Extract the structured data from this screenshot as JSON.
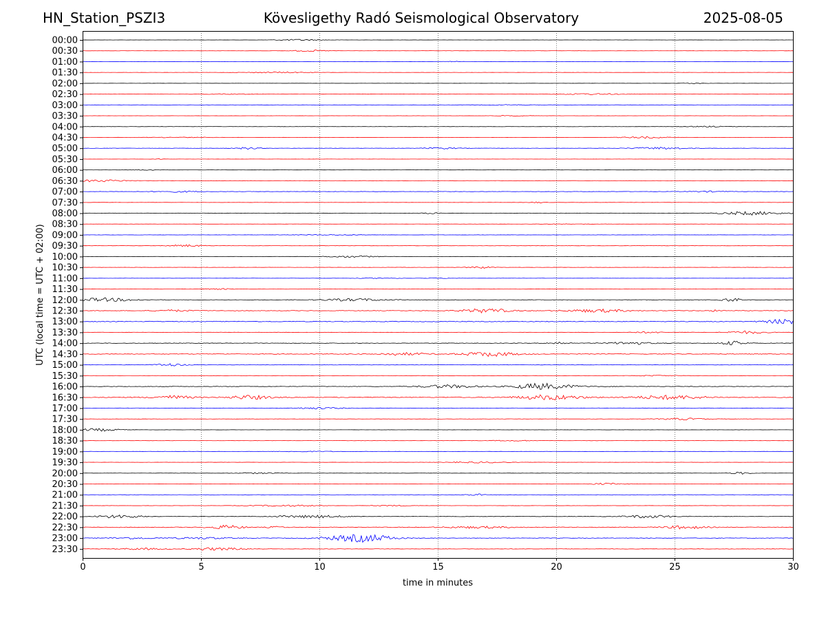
{
  "header": {
    "station": "HN_Station_PSZI3",
    "observatory": "Kövesligethy Radó Seismological Observatory",
    "date": "2025-08-05"
  },
  "chart_data": {
    "type": "line",
    "title": "Kövesligethy Radó Seismological Observatory",
    "xlabel": "time in minutes",
    "ylabel": "UTC (local time = UTC + 02:00)",
    "xlim": [
      0,
      30
    ],
    "x_ticks": [
      0,
      5,
      10,
      15,
      20,
      25,
      30
    ],
    "grid": "vertical dotted lines at each x tick",
    "trace_colors": [
      "#000000",
      "#ff0000",
      "#0000ff",
      "#ff0000"
    ],
    "rows": [
      "00:00",
      "00:30",
      "01:00",
      "01:30",
      "02:00",
      "02:30",
      "03:00",
      "03:30",
      "04:00",
      "04:30",
      "05:00",
      "05:30",
      "06:00",
      "06:30",
      "07:00",
      "07:30",
      "08:00",
      "08:30",
      "09:00",
      "09:30",
      "10:00",
      "10:30",
      "11:00",
      "11:30",
      "12:00",
      "12:30",
      "13:00",
      "13:30",
      "14:00",
      "14:30",
      "15:00",
      "15:30",
      "16:00",
      "16:30",
      "17:00",
      "17:30",
      "18:00",
      "18:30",
      "19:00",
      "19:30",
      "20:00",
      "20:30",
      "21:00",
      "21:30",
      "22:00",
      "22:30",
      "23:00",
      "23:30"
    ],
    "activity": [
      0.3,
      0.4,
      0.4,
      0.3,
      0.3,
      0.4,
      0.4,
      0.3,
      0.5,
      0.4,
      0.6,
      0.3,
      0.3,
      0.6,
      0.7,
      0.4,
      0.8,
      0.3,
      0.5,
      0.5,
      0.5,
      0.5,
      0.4,
      0.6,
      0.9,
      1.1,
      1.4,
      0.7,
      1.0,
      1.3,
      0.8,
      0.4,
      1.0,
      1.5,
      0.8,
      0.5,
      0.4,
      0.5,
      0.5,
      0.4,
      0.5,
      0.5,
      0.6,
      0.4,
      0.9,
      1.2,
      1.0,
      0.8
    ]
  }
}
